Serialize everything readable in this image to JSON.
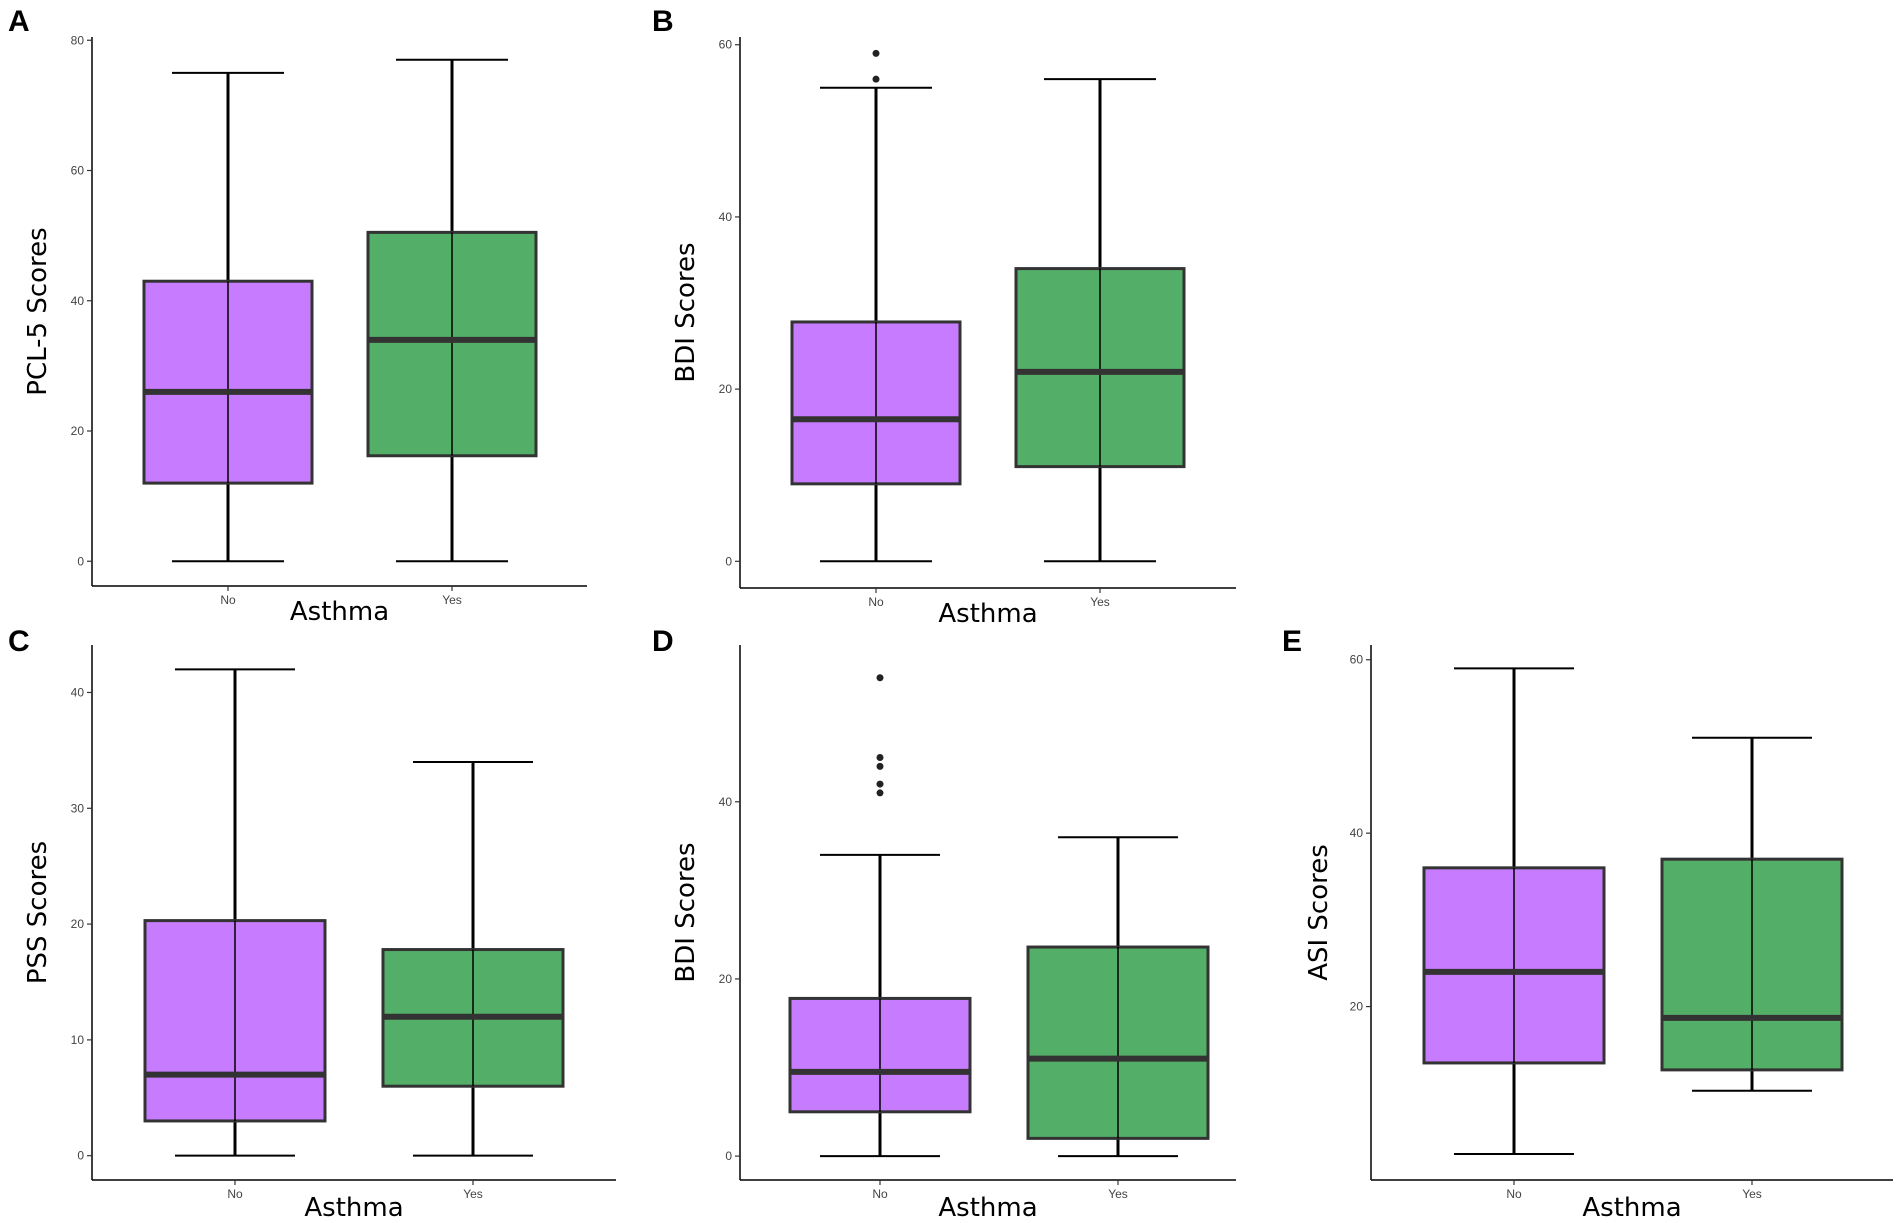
{
  "colors": {
    "no_fill": "#C77CFF",
    "yes_fill": "#53AF68"
  },
  "chart_data": [
    {
      "panel": "A",
      "type": "boxplot",
      "xlabel": "Asthma",
      "ylabel": "PCL-5 Scores",
      "ylim": [
        -3.8,
        80.5
      ],
      "yticks": [
        0,
        20,
        40,
        60,
        80
      ],
      "ytick_labels": [
        "0",
        "20",
        "40",
        "60",
        "80"
      ],
      "categories": [
        "No",
        "Yes"
      ],
      "boxes": [
        {
          "category": "No",
          "min": 0,
          "q1": 12,
          "median": 26,
          "q3": 43,
          "max": 75,
          "outliers": []
        },
        {
          "category": "Yes",
          "min": 0,
          "q1": 16.2,
          "median": 34,
          "q3": 50.5,
          "max": 77,
          "outliers": []
        }
      ]
    },
    {
      "panel": "B",
      "type": "boxplot",
      "xlabel": "Asthma",
      "ylabel": "BDI Scores",
      "ylim": [
        -3.1,
        60.9
      ],
      "yticks": [
        0,
        20,
        40,
        60
      ],
      "ytick_labels": [
        "0",
        "20",
        "40",
        "60"
      ],
      "categories": [
        "No",
        "Yes"
      ],
      "boxes": [
        {
          "category": "No",
          "min": 0,
          "q1": 9,
          "median": 16.5,
          "q3": 27.8,
          "max": 55,
          "outliers": [
            56,
            59
          ]
        },
        {
          "category": "Yes",
          "min": 0,
          "q1": 11,
          "median": 22,
          "q3": 34,
          "max": 56,
          "outliers": []
        }
      ]
    },
    {
      "panel": "C",
      "type": "boxplot",
      "xlabel": "Asthma",
      "ylabel": "PSS Scores",
      "ylim": [
        -2.1,
        44.1
      ],
      "yticks": [
        0,
        10,
        20,
        30,
        40
      ],
      "ytick_labels": [
        "0",
        "10",
        "20",
        "30",
        "40"
      ],
      "categories": [
        "No",
        "Yes"
      ],
      "boxes": [
        {
          "category": "No",
          "min": 0,
          "q1": 3,
          "median": 7,
          "q3": 20.3,
          "max": 42,
          "outliers": []
        },
        {
          "category": "Yes",
          "min": 0,
          "q1": 6,
          "median": 12,
          "q3": 17.8,
          "max": 34,
          "outliers": []
        }
      ]
    },
    {
      "panel": "D",
      "type": "boxplot",
      "xlabel": "Asthma",
      "ylabel": "BDI Scores",
      "ylim": [
        -2.7,
        57.7
      ],
      "yticks": [
        0,
        20,
        40
      ],
      "ytick_labels": [
        "0",
        "20",
        "40"
      ],
      "categories": [
        "No",
        "Yes"
      ],
      "boxes": [
        {
          "category": "No",
          "min": 0,
          "q1": 5,
          "median": 9.5,
          "q3": 17.8,
          "max": 34,
          "outliers": [
            41,
            42,
            44,
            45,
            54
          ]
        },
        {
          "category": "Yes",
          "min": 0,
          "q1": 2,
          "median": 11,
          "q3": 23.6,
          "max": 36,
          "outliers": []
        }
      ]
    },
    {
      "panel": "E",
      "type": "boxplot",
      "xlabel": "Asthma",
      "ylabel": "ASI Scores",
      "ylim": [
        0,
        61.7
      ],
      "yticks": [
        20,
        40,
        60
      ],
      "ytick_labels": [
        "20",
        "40",
        "60"
      ],
      "categories": [
        "No",
        "Yes"
      ],
      "boxes": [
        {
          "category": "No",
          "min": 3,
          "q1": 13.5,
          "median": 24,
          "q3": 36,
          "max": 59,
          "outliers": []
        },
        {
          "category": "Yes",
          "min": 10.3,
          "q1": 12.7,
          "median": 18.7,
          "q3": 37,
          "max": 51,
          "outliers": []
        }
      ]
    }
  ]
}
